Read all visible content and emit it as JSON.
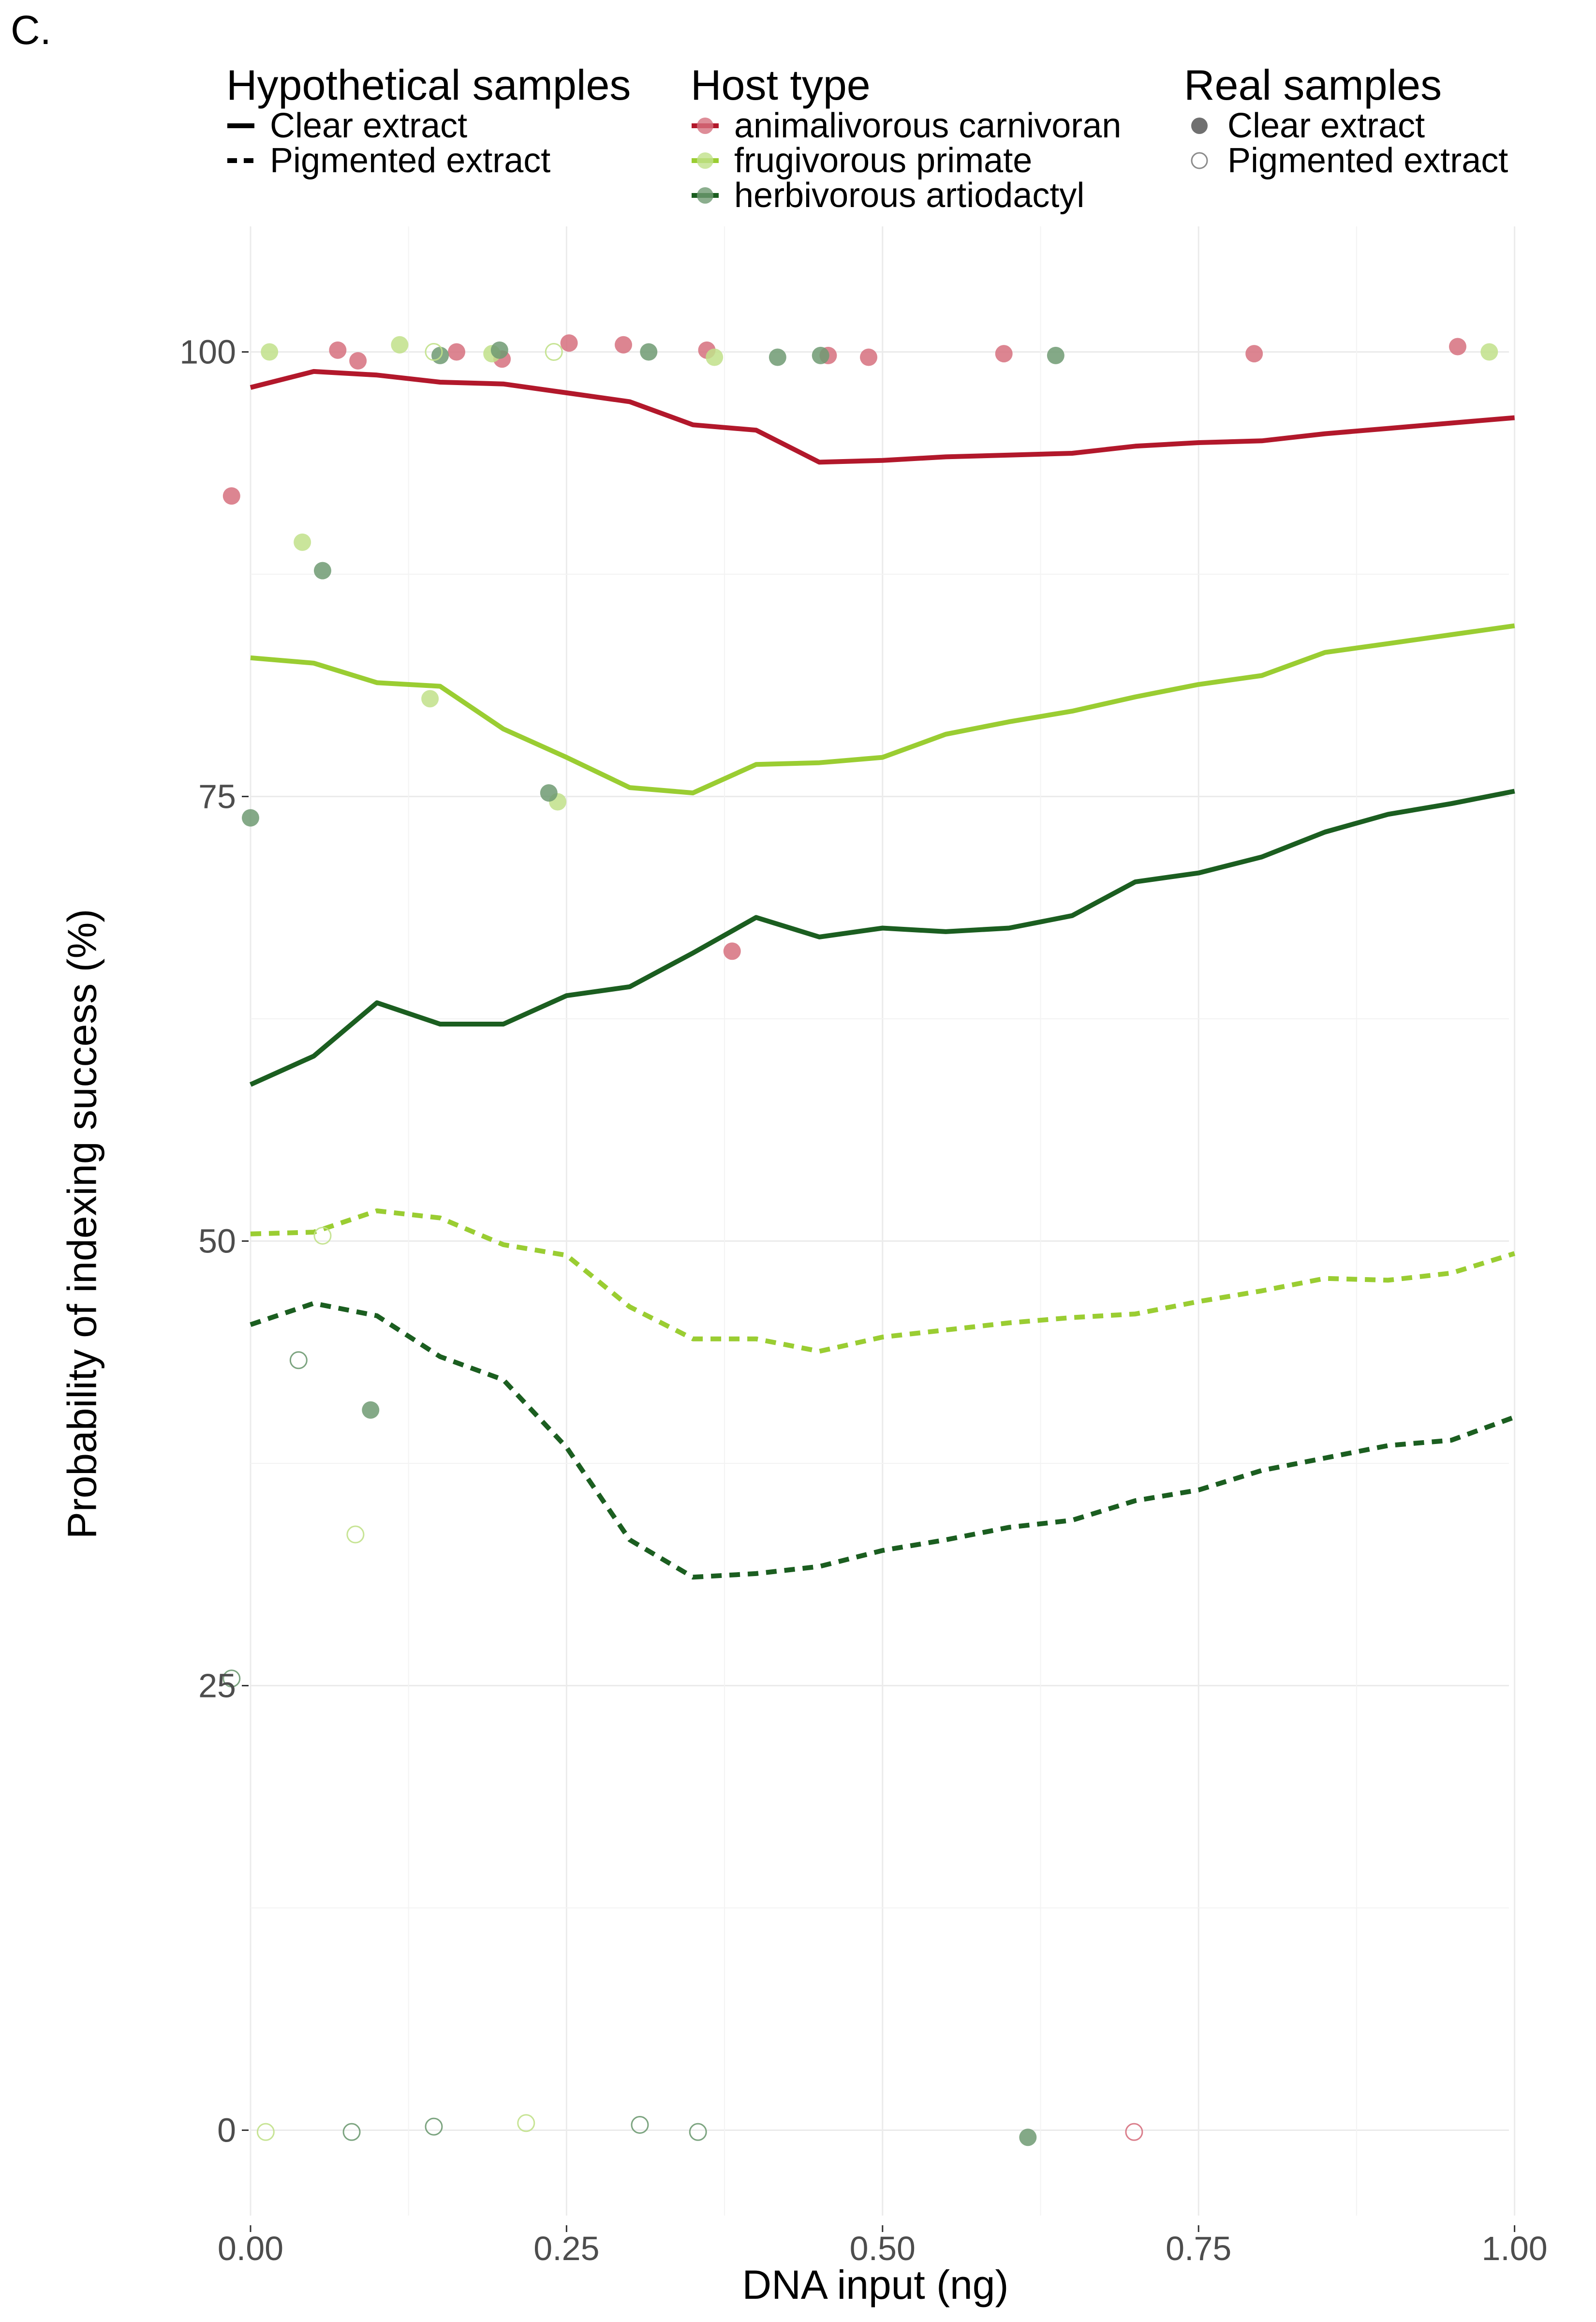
{
  "panel_label": "C.",
  "legends": {
    "hypothetical": {
      "title": "Hypothetical samples",
      "items": [
        {
          "label": "Clear extract",
          "linestyle": "solid"
        },
        {
          "label": "Pigmented extract",
          "linestyle": "dashed"
        }
      ]
    },
    "host": {
      "title": "Host type",
      "items": [
        {
          "label": "animalivorous carnivoran",
          "color": "#B2182B",
          "point_color": "#D6707E"
        },
        {
          "label": "frugivorous primate",
          "color": "#9ACD32",
          "point_color": "#C1E18A"
        },
        {
          "label": "herbivorous artiodactyl",
          "color": "#1B5E20",
          "point_color": "#6E9A72"
        }
      ]
    },
    "real": {
      "title": "Real samples",
      "items": [
        {
          "label": "Clear extract",
          "marker": "filled"
        },
        {
          "label": "Pigmented extract",
          "marker": "open"
        }
      ]
    }
  },
  "chart_data": {
    "type": "line",
    "title": "",
    "xlabel": "DNA input (ng)",
    "ylabel": "Probability of indexing success (%)",
    "xlim": [
      -0.11,
      1.05
    ],
    "ylim": [
      -5,
      106
    ],
    "xticks": [
      0.0,
      0.25,
      0.5,
      0.75,
      1.0
    ],
    "xtick_labels": [
      "0.00",
      "0.25",
      "0.50",
      "0.75",
      "1.00"
    ],
    "yticks": [
      0,
      25,
      50,
      75,
      100
    ],
    "ytick_labels": [
      "0",
      "25",
      "50",
      "75",
      "100"
    ],
    "grid": true,
    "x": [
      0.0,
      0.05,
      0.1,
      0.15,
      0.2,
      0.25,
      0.3,
      0.35,
      0.4,
      0.45,
      0.5,
      0.55,
      0.6,
      0.65,
      0.7,
      0.75,
      0.8,
      0.85,
      0.9,
      0.95,
      1.0
    ],
    "series": [
      {
        "host": "animalivorous carnivoran",
        "extract": "Clear extract",
        "linestyle": "solid",
        "values": [
          98.0,
          98.9,
          98.7,
          98.3,
          98.2,
          97.7,
          97.2,
          95.9,
          95.6,
          93.8,
          93.9,
          94.1,
          94.2,
          94.3,
          94.7,
          94.9,
          95.0,
          95.4,
          95.7,
          96.0,
          96.3
        ]
      },
      {
        "host": "frugivorous primate",
        "extract": "Clear extract",
        "linestyle": "solid",
        "values": [
          82.8,
          82.5,
          81.4,
          81.2,
          78.8,
          77.2,
          75.5,
          75.2,
          76.8,
          76.9,
          77.2,
          78.5,
          79.2,
          79.8,
          80.6,
          81.3,
          81.8,
          83.1,
          83.6,
          84.1,
          84.6
        ]
      },
      {
        "host": "herbivorous artiodactyl",
        "extract": "Clear extract",
        "linestyle": "solid",
        "values": [
          58.8,
          60.4,
          63.4,
          62.2,
          62.2,
          63.8,
          64.3,
          66.2,
          68.2,
          67.1,
          67.6,
          67.4,
          67.6,
          68.3,
          70.2,
          70.7,
          71.6,
          73.0,
          74.0,
          74.6,
          75.3
        ]
      },
      {
        "host": "frugivorous primate",
        "extract": "Pigmented extract",
        "linestyle": "dashed",
        "values": [
          50.4,
          50.5,
          51.7,
          51.3,
          49.8,
          49.2,
          46.3,
          44.5,
          44.5,
          43.8,
          44.6,
          45.0,
          45.4,
          45.7,
          45.9,
          46.6,
          47.2,
          47.9,
          47.8,
          48.2,
          49.3
        ]
      },
      {
        "host": "herbivorous artiodactyl",
        "extract": "Pigmented extract",
        "linestyle": "dashed",
        "values": [
          45.3,
          46.5,
          45.8,
          43.5,
          42.2,
          38.4,
          33.2,
          31.1,
          31.3,
          31.7,
          32.6,
          33.2,
          33.9,
          34.3,
          35.4,
          36.0,
          37.1,
          37.8,
          38.5,
          38.8,
          40.1
        ]
      }
    ],
    "points": [
      {
        "host": "animalivorous carnivoran",
        "extract": "Clear extract",
        "x": -0.015,
        "y": 91.9
      },
      {
        "host": "animalivorous carnivoran",
        "extract": "Clear extract",
        "x": 0.069,
        "y": 100.1
      },
      {
        "host": "animalivorous carnivoran",
        "extract": "Clear extract",
        "x": 0.085,
        "y": 99.5
      },
      {
        "host": "animalivorous carnivoran",
        "extract": "Clear extract",
        "x": 0.163,
        "y": 100.0
      },
      {
        "host": "animalivorous carnivoran",
        "extract": "Clear extract",
        "x": 0.199,
        "y": 99.6
      },
      {
        "host": "animalivorous carnivoran",
        "extract": "Clear extract",
        "x": 0.252,
        "y": 100.5
      },
      {
        "host": "animalivorous carnivoran",
        "extract": "Clear extract",
        "x": 0.295,
        "y": 100.4
      },
      {
        "host": "animalivorous carnivoran",
        "extract": "Clear extract",
        "x": 0.361,
        "y": 100.1
      },
      {
        "host": "animalivorous carnivoran",
        "extract": "Clear extract",
        "x": 0.381,
        "y": 66.3
      },
      {
        "host": "animalivorous carnivoran",
        "extract": "Clear extract",
        "x": 0.457,
        "y": 99.8
      },
      {
        "host": "animalivorous carnivoran",
        "extract": "Clear extract",
        "x": 0.489,
        "y": 99.7
      },
      {
        "host": "animalivorous carnivoran",
        "extract": "Clear extract",
        "x": 0.596,
        "y": 99.9
      },
      {
        "host": "animalivorous carnivoran",
        "extract": "Clear extract",
        "x": 0.794,
        "y": 99.9
      },
      {
        "host": "animalivorous carnivoran",
        "extract": "Clear extract",
        "x": 0.955,
        "y": 100.3
      },
      {
        "host": "frugivorous primate",
        "extract": "Clear extract",
        "x": 0.015,
        "y": 100.0
      },
      {
        "host": "frugivorous primate",
        "extract": "Clear extract",
        "x": 0.041,
        "y": 89.3
      },
      {
        "host": "frugivorous primate",
        "extract": "Clear extract",
        "x": 0.118,
        "y": 100.4
      },
      {
        "host": "frugivorous primate",
        "extract": "Clear extract",
        "x": 0.142,
        "y": 80.5
      },
      {
        "host": "frugivorous primate",
        "extract": "Clear extract",
        "x": 0.191,
        "y": 99.9
      },
      {
        "host": "frugivorous primate",
        "extract": "Clear extract",
        "x": 0.243,
        "y": 74.7
      },
      {
        "host": "frugivorous primate",
        "extract": "Clear extract",
        "x": 0.367,
        "y": 99.7
      },
      {
        "host": "frugivorous primate",
        "extract": "Clear extract",
        "x": 0.98,
        "y": 100.0
      },
      {
        "host": "herbivorous artiodactyl",
        "extract": "Clear extract",
        "x": 0.0,
        "y": 73.8
      },
      {
        "host": "herbivorous artiodactyl",
        "extract": "Clear extract",
        "x": 0.057,
        "y": 87.7
      },
      {
        "host": "herbivorous artiodactyl",
        "extract": "Clear extract",
        "x": 0.095,
        "y": 40.5
      },
      {
        "host": "herbivorous artiodactyl",
        "extract": "Clear extract",
        "x": 0.15,
        "y": 99.8
      },
      {
        "host": "herbivorous artiodactyl",
        "extract": "Clear extract",
        "x": 0.197,
        "y": 100.1
      },
      {
        "host": "herbivorous artiodactyl",
        "extract": "Clear extract",
        "x": 0.236,
        "y": 75.2
      },
      {
        "host": "herbivorous artiodactyl",
        "extract": "Clear extract",
        "x": 0.315,
        "y": 100.0
      },
      {
        "host": "herbivorous artiodactyl",
        "extract": "Clear extract",
        "x": 0.417,
        "y": 99.7
      },
      {
        "host": "herbivorous artiodactyl",
        "extract": "Clear extract",
        "x": 0.451,
        "y": 99.8
      },
      {
        "host": "herbivorous artiodactyl",
        "extract": "Clear extract",
        "x": 0.615,
        "y": -0.4
      },
      {
        "host": "herbivorous artiodactyl",
        "extract": "Clear extract",
        "x": 0.637,
        "y": 99.8
      },
      {
        "host": "frugivorous primate",
        "extract": "Pigmented extract",
        "x": 0.012,
        "y": -0.1
      },
      {
        "host": "frugivorous primate",
        "extract": "Pigmented extract",
        "x": 0.057,
        "y": 50.3
      },
      {
        "host": "frugivorous primate",
        "extract": "Pigmented extract",
        "x": 0.083,
        "y": 33.5
      },
      {
        "host": "frugivorous primate",
        "extract": "Pigmented extract",
        "x": 0.145,
        "y": 100.0
      },
      {
        "host": "frugivorous primate",
        "extract": "Pigmented extract",
        "x": 0.218,
        "y": 0.4
      },
      {
        "host": "frugivorous primate",
        "extract": "Pigmented extract",
        "x": 0.24,
        "y": 100.0
      },
      {
        "host": "herbivorous artiodactyl",
        "extract": "Pigmented extract",
        "x": -0.015,
        "y": 25.4
      },
      {
        "host": "herbivorous artiodactyl",
        "extract": "Pigmented extract",
        "x": 0.038,
        "y": 43.3
      },
      {
        "host": "herbivorous artiodactyl",
        "extract": "Pigmented extract",
        "x": 0.08,
        "y": -0.1
      },
      {
        "host": "herbivorous artiodactyl",
        "extract": "Pigmented extract",
        "x": 0.145,
        "y": 0.2
      },
      {
        "host": "herbivorous artiodactyl",
        "extract": "Pigmented extract",
        "x": 0.308,
        "y": 0.3
      },
      {
        "host": "herbivorous artiodactyl",
        "extract": "Pigmented extract",
        "x": 0.354,
        "y": -0.1
      },
      {
        "host": "animalivorous carnivoran",
        "extract": "Pigmented extract",
        "x": 0.699,
        "y": -0.1
      }
    ]
  }
}
